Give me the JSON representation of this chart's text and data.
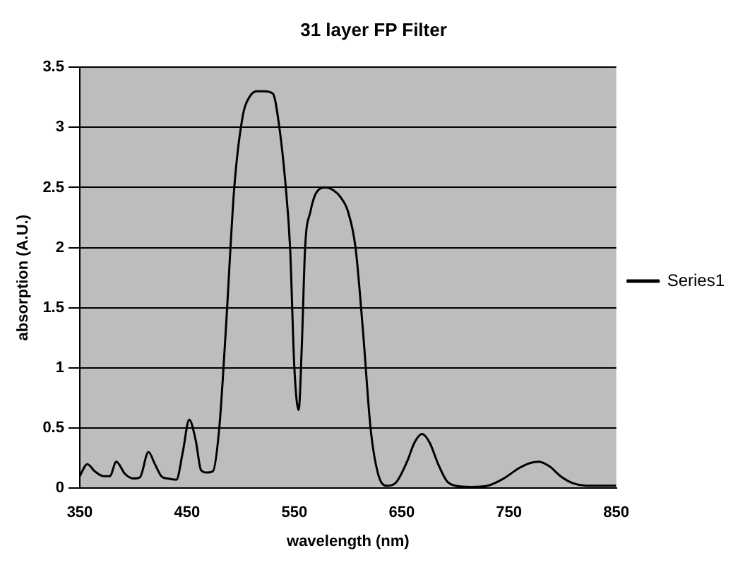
{
  "chart_data": {
    "type": "line",
    "title": "31 layer FP Filter",
    "xlabel": "wavelength (nm)",
    "ylabel": "absorption (A.U.)",
    "xlim": [
      350,
      850
    ],
    "xticks": [
      350,
      450,
      550,
      650,
      750,
      850
    ],
    "ylim": [
      0,
      3.5
    ],
    "yticks": [
      0,
      0.5,
      1,
      1.5,
      2,
      2.5,
      3,
      3.5
    ],
    "grid": "y",
    "legend": "right",
    "marker": "none",
    "line_style": "solid",
    "series": [
      {
        "name": "Series1",
        "color": "#000000",
        "x": [
          350,
          357,
          364,
          372,
          378,
          384,
          392,
          400,
          406,
          414,
          420,
          426,
          432,
          440,
          446,
          452,
          458,
          463,
          468,
          474,
          480,
          486,
          494,
          502,
          508,
          515,
          522,
          530,
          536,
          542,
          546,
          550,
          554,
          557,
          560,
          565,
          570,
          579,
          586,
          593,
          600,
          607,
          614,
          621,
          628,
          636,
          645,
          655,
          662,
          669,
          676,
          684,
          692,
          700,
          715,
          730,
          745,
          760,
          770,
          778,
          788,
          798,
          810,
          822,
          835,
          850
        ],
        "values": [
          0.1,
          0.2,
          0.14,
          0.1,
          0.1,
          0.22,
          0.12,
          0.08,
          0.09,
          0.3,
          0.2,
          0.1,
          0.08,
          0.07,
          0.3,
          0.57,
          0.4,
          0.15,
          0.13,
          0.14,
          0.5,
          1.3,
          2.5,
          3.1,
          3.25,
          3.3,
          3.3,
          3.28,
          3.0,
          2.5,
          2.0,
          1.0,
          0.65,
          1.2,
          2.0,
          2.3,
          2.45,
          2.5,
          2.48,
          2.42,
          2.3,
          2.0,
          1.3,
          0.5,
          0.12,
          0.02,
          0.05,
          0.22,
          0.38,
          0.45,
          0.38,
          0.2,
          0.06,
          0.02,
          0.01,
          0.02,
          0.08,
          0.17,
          0.21,
          0.22,
          0.18,
          0.1,
          0.04,
          0.02,
          0.02,
          0.02
        ]
      }
    ]
  }
}
